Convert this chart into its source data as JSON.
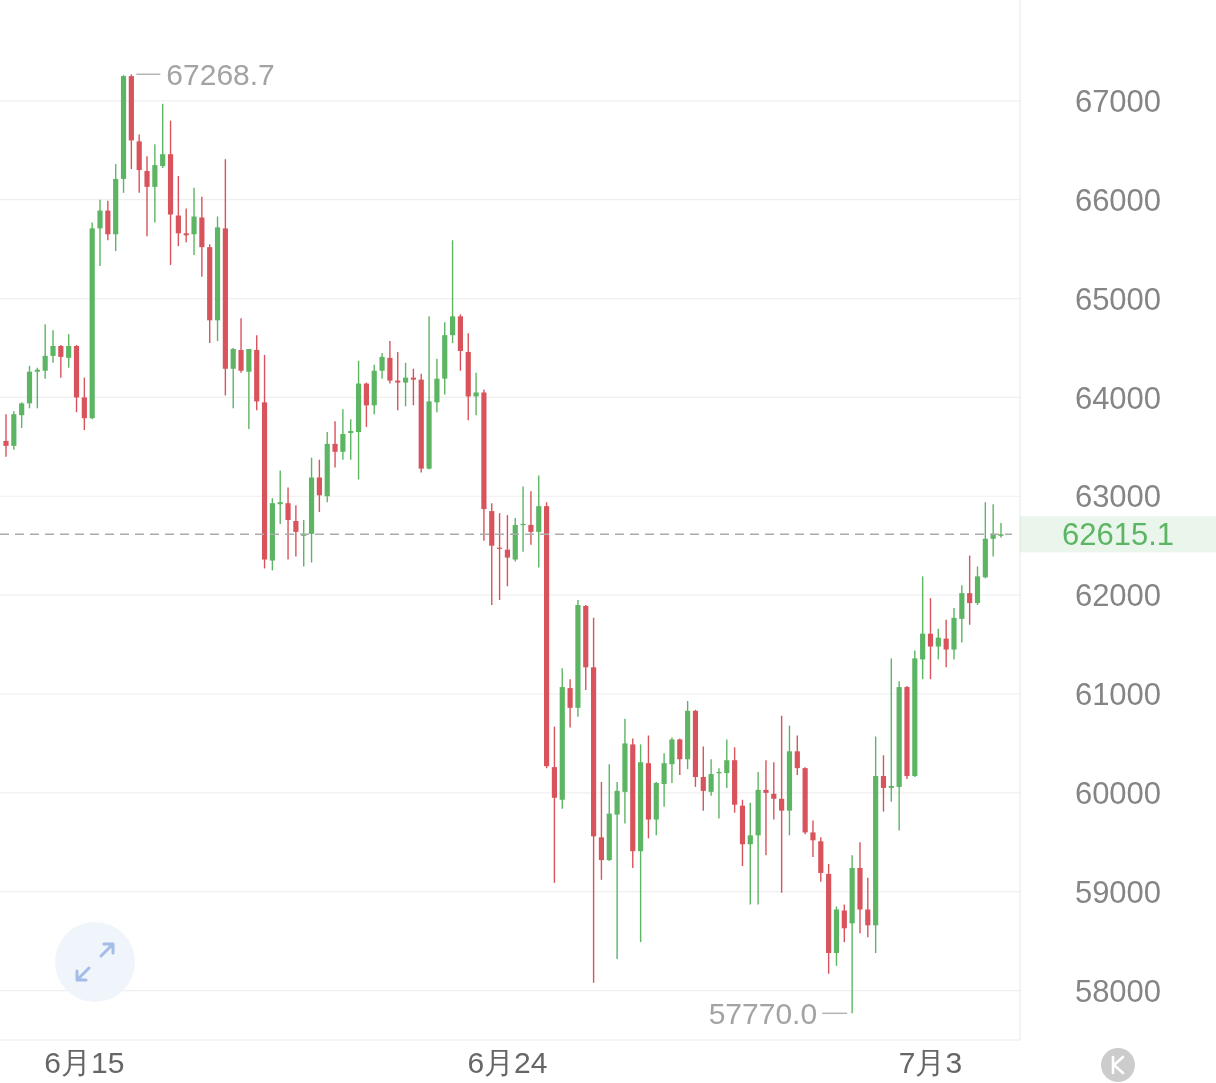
{
  "chart_data": {
    "type": "candlestick",
    "categories": [
      null,
      null,
      null,
      null,
      null,
      null,
      null,
      null,
      null,
      null,
      "6月15",
      null,
      null,
      null,
      null,
      null,
      null,
      null,
      null,
      null,
      null,
      null,
      null,
      null,
      null,
      null,
      null,
      null,
      null,
      null,
      null,
      null,
      null,
      null,
      null,
      null,
      null,
      null,
      null,
      null,
      null,
      null,
      null,
      null,
      null,
      null,
      null,
      null,
      null,
      null,
      null,
      null,
      null,
      null,
      null,
      null,
      null,
      null,
      null,
      null,
      null,
      null,
      null,
      null,
      "6月24",
      null,
      null,
      null,
      null,
      null,
      null,
      null,
      null,
      null,
      null,
      null,
      null,
      null,
      null,
      null,
      null,
      null,
      null,
      null,
      null,
      null,
      null,
      null,
      null,
      null,
      null,
      null,
      null,
      null,
      null,
      null,
      null,
      null,
      null,
      null,
      null,
      null,
      null,
      null,
      null,
      null,
      null,
      null,
      null,
      null,
      null,
      null,
      null,
      null,
      null,
      null,
      null,
      null,
      "7月3",
      null,
      null,
      null,
      null,
      null,
      null,
      null,
      null,
      null
    ],
    "ohlc": [
      [
        63560,
        63830,
        63400,
        63510
      ],
      [
        63510,
        63860,
        63470,
        63830
      ],
      [
        63820,
        63950,
        63690,
        63940
      ],
      [
        63940,
        64320,
        63890,
        64260
      ],
      [
        64260,
        64300,
        63890,
        64280
      ],
      [
        64270,
        64740,
        64190,
        64420
      ],
      [
        64420,
        64680,
        64350,
        64520
      ],
      [
        64520,
        64530,
        64200,
        64410
      ],
      [
        64400,
        64640,
        64300,
        64520
      ],
      [
        64520,
        64530,
        63850,
        64000
      ],
      [
        64000,
        64200,
        63670,
        63790
      ],
      [
        63790,
        65770,
        63780,
        65710
      ],
      [
        65710,
        66000,
        65330,
        65890
      ],
      [
        65890,
        65990,
        65590,
        65650
      ],
      [
        65650,
        66360,
        65480,
        66210
      ],
      [
        66210,
        67260,
        66070,
        67250
      ],
      [
        67250,
        67268.7,
        66310,
        66600
      ],
      [
        66590,
        66660,
        66070,
        66300
      ],
      [
        66290,
        66440,
        65630,
        66130
      ],
      [
        66130,
        66560,
        65770,
        66350
      ],
      [
        66340,
        66970,
        66320,
        66460
      ],
      [
        66460,
        66800,
        65340,
        65850
      ],
      [
        65840,
        66240,
        65530,
        65660
      ],
      [
        65660,
        65910,
        65570,
        65640
      ],
      [
        65650,
        66120,
        65440,
        65830
      ],
      [
        65820,
        66030,
        65220,
        65520
      ],
      [
        65520,
        65550,
        64550,
        64780
      ],
      [
        64780,
        65830,
        64570,
        65720
      ],
      [
        65710,
        66410,
        64020,
        64290
      ],
      [
        64290,
        64500,
        63890,
        64490
      ],
      [
        64480,
        64800,
        64250,
        64270
      ],
      [
        64260,
        64490,
        63680,
        64490
      ],
      [
        64480,
        64630,
        63870,
        63960
      ],
      [
        63950,
        64430,
        62270,
        62360
      ],
      [
        62350,
        62980,
        62250,
        62930
      ],
      [
        62920,
        63260,
        62720,
        62940
      ],
      [
        62930,
        63090,
        62360,
        62760
      ],
      [
        62750,
        62910,
        62390,
        62640
      ],
      [
        62600,
        62760,
        62290,
        62620
      ],
      [
        62620,
        63390,
        62330,
        63190
      ],
      [
        63190,
        63370,
        62840,
        63010
      ],
      [
        63000,
        63650,
        62940,
        63530
      ],
      [
        63530,
        63760,
        63290,
        63450
      ],
      [
        63450,
        63880,
        63370,
        63630
      ],
      [
        63640,
        63780,
        63370,
        63660
      ],
      [
        63650,
        64370,
        63170,
        64140
      ],
      [
        64140,
        64150,
        63700,
        63920
      ],
      [
        63920,
        64330,
        63830,
        64270
      ],
      [
        64270,
        64450,
        64190,
        64410
      ],
      [
        64400,
        64570,
        64140,
        64170
      ],
      [
        64170,
        64460,
        63870,
        64150
      ],
      [
        64150,
        64350,
        63910,
        64200
      ],
      [
        64200,
        64290,
        63920,
        64180
      ],
      [
        64180,
        64240,
        63240,
        63280
      ],
      [
        63280,
        64820,
        63270,
        63960
      ],
      [
        63950,
        64390,
        63850,
        64190
      ],
      [
        64190,
        64760,
        64030,
        64630
      ],
      [
        64630,
        65590,
        64550,
        64820
      ],
      [
        64820,
        64840,
        64270,
        64470
      ],
      [
        64460,
        64650,
        63770,
        64010
      ],
      [
        64010,
        64250,
        63820,
        64050
      ],
      [
        64050,
        64080,
        62550,
        62870
      ],
      [
        62850,
        62930,
        61900,
        62500
      ],
      [
        62480,
        62830,
        61950,
        62470
      ],
      [
        62460,
        62810,
        62090,
        62380
      ],
      [
        62360,
        62780,
        62340,
        62710
      ],
      [
        62710,
        63100,
        62440,
        62720
      ],
      [
        62710,
        63050,
        62510,
        62640
      ],
      [
        62640,
        63210,
        62280,
        62900
      ],
      [
        62900,
        62940,
        60250,
        60270
      ],
      [
        60260,
        60670,
        59090,
        59950
      ],
      [
        59930,
        61260,
        59840,
        61070
      ],
      [
        61060,
        61150,
        60660,
        60860
      ],
      [
        60860,
        61950,
        60770,
        61900
      ],
      [
        61890,
        61900,
        61040,
        61270
      ],
      [
        61270,
        61770,
        58080,
        59560
      ],
      [
        59550,
        60110,
        59120,
        59320
      ],
      [
        59320,
        60290,
        59310,
        59790
      ],
      [
        59780,
        60110,
        58320,
        60020
      ],
      [
        60010,
        60750,
        59690,
        60500
      ],
      [
        60490,
        60550,
        59240,
        59410
      ],
      [
        59410,
        60490,
        58490,
        60310
      ],
      [
        60300,
        60580,
        59540,
        59730
      ],
      [
        59730,
        60110,
        59570,
        60100
      ],
      [
        60090,
        60400,
        59860,
        60300
      ],
      [
        60290,
        60560,
        60100,
        60540
      ],
      [
        60540,
        60550,
        60180,
        60340
      ],
      [
        60340,
        60930,
        60240,
        60830
      ],
      [
        60830,
        60840,
        60060,
        60160
      ],
      [
        60160,
        60470,
        59820,
        60020
      ],
      [
        60010,
        60340,
        59970,
        60190
      ],
      [
        60200,
        60250,
        59740,
        60210
      ],
      [
        60200,
        60540,
        60050,
        60330
      ],
      [
        60330,
        60460,
        59800,
        59880
      ],
      [
        59870,
        59930,
        59260,
        59480
      ],
      [
        59480,
        59900,
        58870,
        59570
      ],
      [
        59570,
        60210,
        58870,
        60030
      ],
      [
        60030,
        60330,
        59370,
        60000
      ],
      [
        59990,
        60310,
        59730,
        59940
      ],
      [
        59940,
        60780,
        58990,
        59820
      ],
      [
        59820,
        60680,
        59570,
        60420
      ],
      [
        60420,
        60580,
        60180,
        60250
      ],
      [
        60250,
        60260,
        59580,
        59600
      ],
      [
        59600,
        59720,
        59350,
        59520
      ],
      [
        59510,
        59550,
        59100,
        59190
      ],
      [
        59180,
        59280,
        58170,
        58380
      ],
      [
        58380,
        58850,
        58250,
        58820
      ],
      [
        58810,
        58870,
        58490,
        58630
      ],
      [
        58680,
        59370,
        57770.0,
        59240
      ],
      [
        59240,
        59500,
        58580,
        58820
      ],
      [
        58820,
        59140,
        58540,
        58660
      ],
      [
        58660,
        60570,
        58380,
        60170
      ],
      [
        60170,
        60380,
        59810,
        60050
      ],
      [
        60050,
        61360,
        59910,
        60070
      ],
      [
        60060,
        61130,
        59620,
        61070
      ],
      [
        61070,
        61080,
        60140,
        60170
      ],
      [
        60170,
        61440,
        60160,
        61360
      ],
      [
        61350,
        62190,
        61150,
        61610
      ],
      [
        61610,
        61970,
        61150,
        61480
      ],
      [
        61480,
        61660,
        61350,
        61570
      ],
      [
        61560,
        61750,
        61270,
        61450
      ],
      [
        61450,
        61870,
        61350,
        61770
      ],
      [
        61760,
        62100,
        61520,
        62020
      ],
      [
        62020,
        62400,
        61700,
        61920
      ],
      [
        61920,
        62290,
        61900,
        62190
      ],
      [
        62180,
        62940,
        62170,
        62570
      ],
      [
        62570,
        62920,
        62390,
        62620
      ],
      [
        62600,
        62730,
        62580,
        62615.1
      ]
    ],
    "colors": [
      "#d8535b",
      "#5cb563",
      "#5cb563",
      "#5cb563",
      "#5cb563",
      "#5cb563",
      "#5cb563",
      "#d8535b",
      "#5cb563",
      "#d8535b",
      "#d8535b",
      "#5cb563",
      "#5cb563",
      "#d8535b",
      "#5cb563",
      "#5cb563",
      "#d8535b",
      "#d8535b",
      "#d8535b",
      "#5cb563",
      "#5cb563",
      "#d8535b",
      "#d8535b",
      "#d8535b",
      "#5cb563",
      "#d8535b",
      "#d8535b",
      "#5cb563",
      "#d8535b",
      "#5cb563",
      "#d8535b",
      "#5cb563",
      "#d8535b",
      "#d8535b",
      "#5cb563",
      "#5cb563",
      "#d8535b",
      "#d8535b",
      "#5cb563",
      "#5cb563",
      "#d8535b",
      "#5cb563",
      "#d8535b",
      "#5cb563",
      "#5cb563",
      "#5cb563",
      "#d8535b",
      "#5cb563",
      "#5cb563",
      "#d8535b",
      "#d8535b",
      "#5cb563",
      "#d8535b",
      "#d8535b",
      "#5cb563",
      "#5cb563",
      "#5cb563",
      "#5cb563",
      "#d8535b",
      "#d8535b",
      "#5cb563",
      "#d8535b",
      "#d8535b",
      "#d8535b",
      "#d8535b",
      "#5cb563",
      "#5cb563",
      "#d8535b",
      "#5cb563",
      "#d8535b",
      "#d8535b",
      "#5cb563",
      "#d8535b",
      "#5cb563",
      "#d8535b",
      "#d8535b",
      "#d8535b",
      "#5cb563",
      "#5cb563",
      "#5cb563",
      "#d8535b",
      "#5cb563",
      "#d8535b",
      "#5cb563",
      "#5cb563",
      "#5cb563",
      "#d8535b",
      "#5cb563",
      "#d8535b",
      "#d8535b",
      "#5cb563",
      "#5cb563",
      "#5cb563",
      "#d8535b",
      "#d8535b",
      "#5cb563",
      "#5cb563",
      "#d8535b",
      "#d8535b",
      "#d8535b",
      "#5cb563",
      "#d8535b",
      "#d8535b",
      "#d8535b",
      "#d8535b",
      "#d8535b",
      "#5cb563",
      "#d8535b",
      "#5cb563",
      "#d8535b",
      "#d8535b",
      "#5cb563",
      "#d8535b",
      "#5cb563",
      "#5cb563",
      "#d8535b",
      "#5cb563",
      "#5cb563",
      "#d8535b",
      "#5cb563",
      "#d8535b",
      "#5cb563",
      "#5cb563",
      "#d8535b",
      "#5cb563",
      "#5cb563",
      "#5cb563",
      "#5cb563"
    ],
    "ylim": [
      57500,
      68020
    ],
    "yticks": [
      58000,
      59000,
      60000,
      61000,
      62000,
      63000,
      64000,
      65000,
      66000,
      67000
    ],
    "grid": "y",
    "ref_lines": [
      {
        "axis": "y",
        "value": 62615.1,
        "label": "62615.1",
        "color": "#ababab",
        "line_style": "dashed"
      }
    ],
    "annotations": [
      "67268.7",
      "57770.0"
    ]
  }
}
